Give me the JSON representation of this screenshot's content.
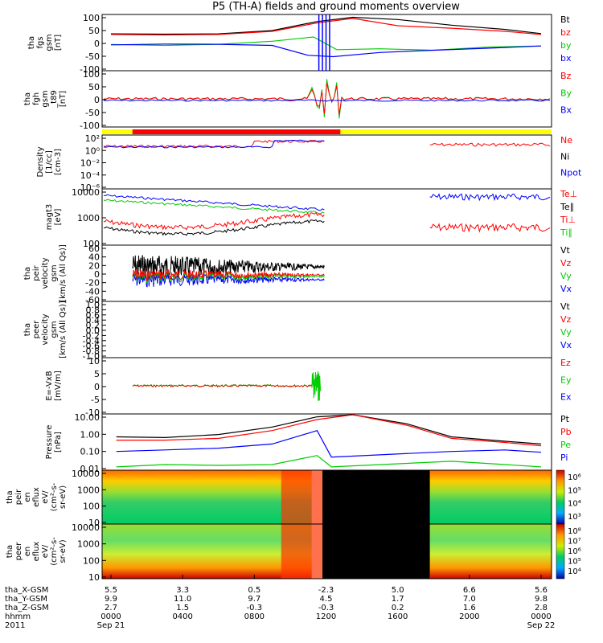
{
  "title": "P5 (TH-A) fields and ground moments overview",
  "date_year": "2011",
  "date_start": "Sep 21",
  "date_end": "Sep 22",
  "colors": {
    "black": "#000000",
    "red": "#ff0000",
    "green": "#00cc00",
    "blue": "#0000ff",
    "yellow": "#ffff00"
  },
  "panels": [
    {
      "id": "fgs",
      "ylabel": [
        "tha",
        "fgs",
        "gsm",
        "[nT]"
      ],
      "ticks": [
        "100",
        "50",
        "0",
        "-50",
        "-100"
      ],
      "legend": [
        {
          "t": "Bt",
          "c": "black"
        },
        {
          "t": "bz",
          "c": "red"
        },
        {
          "t": "by",
          "c": "green"
        },
        {
          "t": "bx",
          "c": "blue"
        }
      ]
    },
    {
      "id": "fgh",
      "ylabel": [
        "tha",
        "fgh",
        "gsm",
        "_t89",
        "[nT]"
      ],
      "ticks": [
        "100",
        "50",
        "0",
        "-50",
        "-100"
      ],
      "legend": [
        {
          "t": "Bz",
          "c": "red"
        },
        {
          "t": "By",
          "c": "green"
        },
        {
          "t": "Bx",
          "c": "blue"
        }
      ]
    },
    {
      "id": "dens",
      "ylabel": [
        "Density",
        "[1/cc]",
        "[cm-3]"
      ],
      "ticks": [
        "10²",
        "10⁰",
        "10⁻²",
        "10⁻⁴",
        "10⁻⁶"
      ],
      "legend": [
        {
          "t": "Ne",
          "c": "red"
        },
        {
          "t": "Ni",
          "c": "black"
        },
        {
          "t": "Npot",
          "c": "blue"
        }
      ]
    },
    {
      "id": "temp",
      "ylabel": [
        "magt3",
        "[eV]"
      ],
      "ticks": [
        "10000",
        "1000",
        "100"
      ],
      "legend": [
        {
          "t": "Te⊥",
          "c": "red"
        },
        {
          "t": "Te∥",
          "c": "black"
        },
        {
          "t": "Ti⊥",
          "c": "red"
        },
        {
          "t": "Ti∥",
          "c": "green"
        }
      ]
    },
    {
      "id": "peirv",
      "ylabel": [
        "tha",
        "peir",
        "velocity",
        "gsm",
        "[km/s (All Qs)]"
      ],
      "ticks": [
        "60",
        "40",
        "20",
        "0",
        "-20",
        "-40",
        "-60"
      ],
      "legend": [
        {
          "t": "Vt",
          "c": "black"
        },
        {
          "t": "Vz",
          "c": "red"
        },
        {
          "t": "Vy",
          "c": "green"
        },
        {
          "t": "Vx",
          "c": "blue"
        }
      ]
    },
    {
      "id": "peerv",
      "ylabel": [
        "tha",
        "peer",
        "velocity",
        "gsm",
        "[km/s (All Qs)]"
      ],
      "ticks": [
        "1.0",
        "0.8",
        "0.6",
        "0.4",
        "0.2",
        "0.0",
        "-0.2",
        "-0.4",
        "-0.6",
        "-0.8",
        "-1.0"
      ],
      "legend": [
        {
          "t": "Vt",
          "c": "black"
        },
        {
          "t": "Vz",
          "c": "red"
        },
        {
          "t": "Vy",
          "c": "green"
        },
        {
          "t": "Vx",
          "c": "blue"
        }
      ]
    },
    {
      "id": "efield",
      "ylabel": [
        "E=-VxB",
        "[mV/m]"
      ],
      "ticks": [
        "10",
        "5",
        "0",
        "-5",
        "-10"
      ],
      "legend": [
        {
          "t": "Ez",
          "c": "red"
        },
        {
          "t": "Ey",
          "c": "green"
        },
        {
          "t": "Ex",
          "c": "blue"
        }
      ]
    },
    {
      "id": "press",
      "ylabel": [
        "Pressure",
        "[nPa]"
      ],
      "ticks": [
        "10.00",
        "1.00",
        "0.10",
        "0.01"
      ],
      "legend": [
        {
          "t": "Pt",
          "c": "black"
        },
        {
          "t": "Pb",
          "c": "red"
        },
        {
          "t": "Pe",
          "c": "green"
        },
        {
          "t": "Pi",
          "c": "blue"
        }
      ]
    },
    {
      "id": "ispec",
      "ylabel": [
        "tha",
        "peir",
        "en",
        "eflux",
        "eV/",
        "(cm²-s-",
        "sr-eV)"
      ],
      "ticks": [
        "10000",
        "1000",
        "100",
        "10"
      ],
      "colorbar": [
        "10⁶",
        "10⁵",
        "10⁴",
        "10³"
      ]
    },
    {
      "id": "espec",
      "ylabel": [
        "tha",
        "peer",
        "en",
        "eflux",
        "eV/",
        "(cm²-s-",
        "sr-eV)"
      ],
      "ticks": [
        "10000",
        "1000",
        "100",
        "10"
      ],
      "colorbar": [
        "10⁸",
        "10⁷",
        "10⁶",
        "10⁵",
        "10⁴"
      ]
    }
  ],
  "ephemeris": {
    "rows": [
      {
        "label": "tha_X-GSM",
        "values": [
          "5.5",
          "3.3",
          "0.5",
          "-2.3",
          "5.0",
          "6.6",
          "5.6"
        ]
      },
      {
        "label": "tha_Y-GSM",
        "values": [
          "9.9",
          "11.0",
          "9.7",
          "4.5",
          "1.7",
          "7.0",
          "9.8"
        ]
      },
      {
        "label": "tha_Z-GSM",
        "values": [
          "2.7",
          "1.5",
          "-0.3",
          "-0.3",
          "0.2",
          "1.6",
          "2.8"
        ]
      },
      {
        "label": "hhmm",
        "values": [
          "0000",
          "0400",
          "0800",
          "1200",
          "1600",
          "2000",
          "0000"
        ]
      }
    ]
  },
  "chart_data": {
    "type": "line",
    "title": "P5 (TH-A) fields and ground moments overview",
    "x_hours": [
      0,
      4,
      8,
      12,
      16,
      20,
      24
    ],
    "series": [
      {
        "name": "Bt",
        "x": [
          0,
          3,
          6,
          9,
          11.5,
          13.5,
          16,
          19,
          22,
          24
        ],
        "values": [
          31,
          30,
          31,
          43,
          75,
          90,
          82,
          62,
          47,
          32
        ]
      },
      {
        "name": "bz",
        "x": [
          0,
          3,
          6,
          9,
          11.5,
          13.5,
          16,
          19,
          22,
          24
        ],
        "values": [
          29,
          27,
          29,
          40,
          70,
          86,
          60,
          51,
          40,
          29
        ]
      },
      {
        "name": "by",
        "x": [
          0,
          3,
          6,
          9,
          11.3,
          12.6,
          15,
          18,
          21,
          24
        ],
        "values": [
          -7,
          -10,
          -6,
          5,
          20,
          -25,
          -22,
          -27,
          -16,
          -12
        ]
      },
      {
        "name": "bx",
        "x": [
          0,
          3,
          6,
          9,
          11,
          12.4,
          15,
          18,
          21,
          24
        ],
        "values": [
          -8,
          -5,
          -6,
          -10,
          -45,
          -50,
          -35,
          -27,
          -20,
          -12
        ]
      },
      {
        "name": "Pt",
        "x": [
          0.3,
          3,
          6,
          9,
          11.5,
          13.5,
          16.5,
          19,
          22,
          24
        ],
        "values": [
          0.6,
          0.55,
          0.8,
          2,
          7,
          15,
          3,
          0.6,
          0.35,
          0.25
        ]
      },
      {
        "name": "Pb",
        "x": [
          0.3,
          3,
          6,
          9,
          11.5,
          13.5,
          16.5,
          19,
          22,
          24
        ],
        "values": [
          0.4,
          0.4,
          0.5,
          1.3,
          5,
          12,
          2.5,
          0.5,
          0.3,
          0.2
        ]
      },
      {
        "name": "Pi",
        "x": [
          0.3,
          3,
          6,
          9,
          11.5,
          12.3,
          19,
          22,
          24
        ],
        "values": [
          0.1,
          0.12,
          0.15,
          0.25,
          1.3,
          0.05,
          0.1,
          0.12,
          0.09
        ]
      },
      {
        "name": "Pe",
        "x": [
          0.3,
          3,
          6,
          9,
          11.5,
          12.3,
          19,
          22,
          24
        ],
        "values": [
          0.015,
          0.02,
          0.018,
          0.02,
          0.06,
          0.015,
          0.03,
          0.02,
          0.015
        ]
      }
    ],
    "ylim_fgs": [
      -100,
      100
    ],
    "ylim_pressure": [
      0.01,
      10
    ]
  }
}
